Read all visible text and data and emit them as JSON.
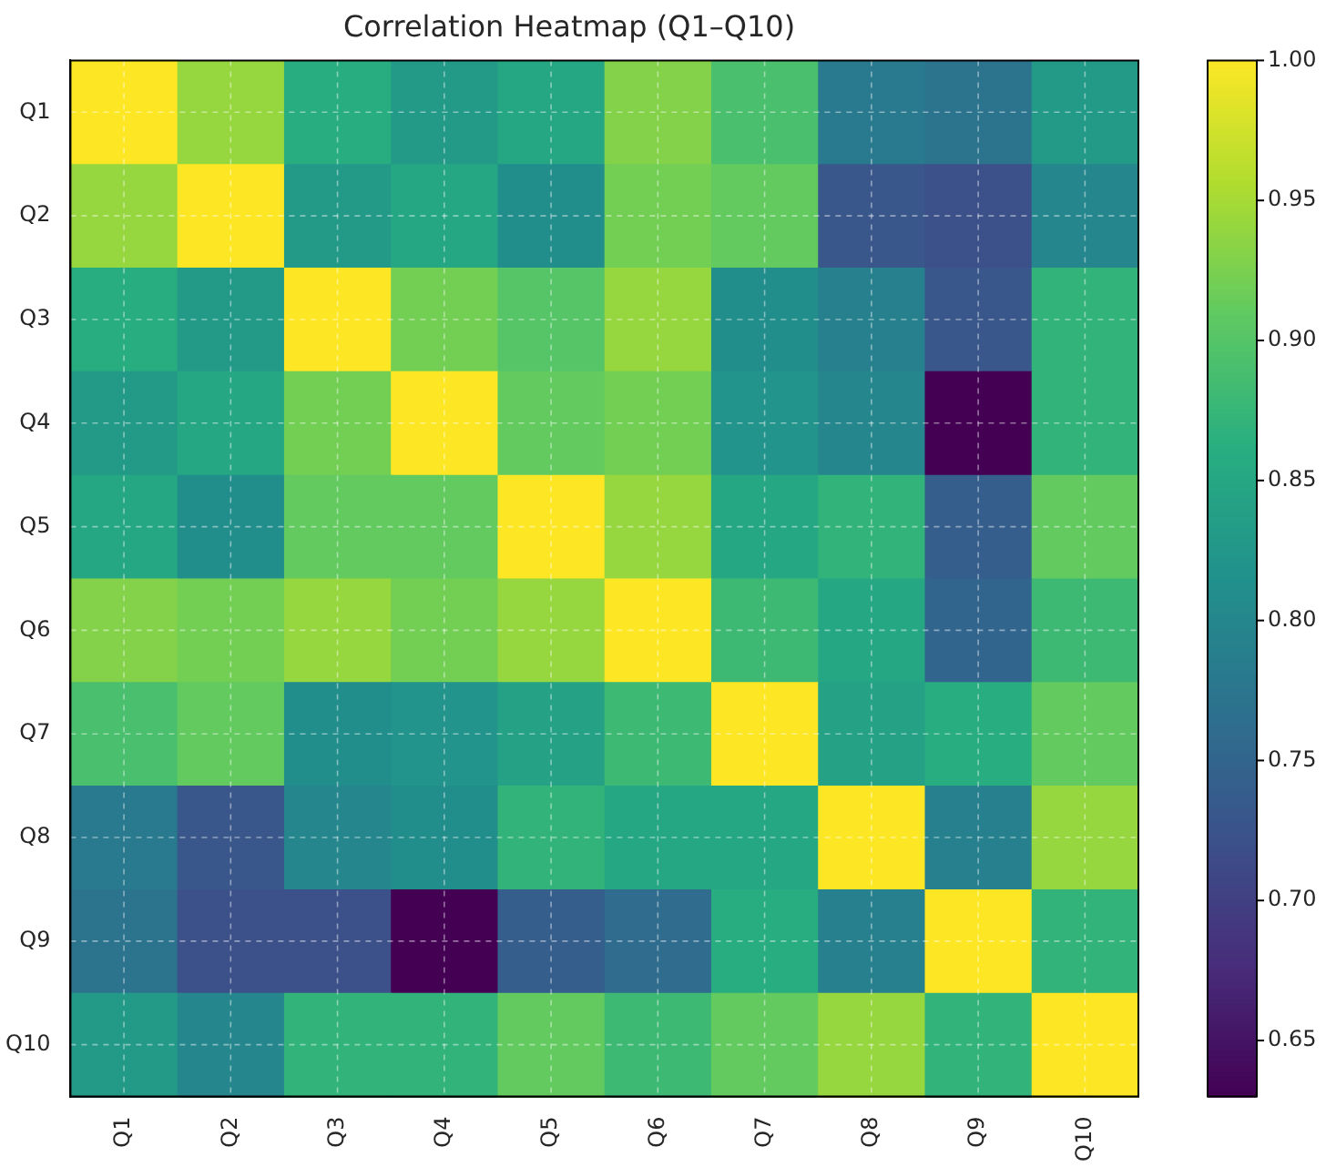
{
  "chart_data": {
    "type": "heatmap",
    "title": "Correlation Heatmap (Q1–Q10)",
    "categories": [
      "Q1",
      "Q2",
      "Q3",
      "Q4",
      "Q5",
      "Q6",
      "Q7",
      "Q8",
      "Q9",
      "Q10"
    ],
    "y_categories": [
      "Q1",
      "Q2",
      "Q3",
      "Q4",
      "Q5",
      "Q6",
      "Q7",
      "Q8",
      "Q9",
      "Q10"
    ],
    "cells": [
      [
        1.0,
        0.94,
        0.86,
        0.83,
        0.85,
        0.93,
        0.89,
        0.78,
        0.77,
        0.83
      ],
      [
        0.94,
        1.0,
        0.83,
        0.85,
        0.81,
        0.92,
        0.91,
        0.73,
        0.72,
        0.8
      ],
      [
        0.86,
        0.83,
        1.0,
        0.92,
        0.9,
        0.94,
        0.81,
        0.79,
        0.73,
        0.87
      ],
      [
        0.83,
        0.85,
        0.92,
        1.0,
        0.91,
        0.92,
        0.82,
        0.8,
        0.63,
        0.87
      ],
      [
        0.85,
        0.81,
        0.91,
        0.91,
        1.0,
        0.94,
        0.85,
        0.87,
        0.74,
        0.91
      ],
      [
        0.93,
        0.92,
        0.94,
        0.92,
        0.94,
        1.0,
        0.88,
        0.85,
        0.75,
        0.88
      ],
      [
        0.89,
        0.91,
        0.81,
        0.82,
        0.84,
        0.88,
        1.0,
        0.84,
        0.86,
        0.91
      ],
      [
        0.78,
        0.73,
        0.8,
        0.81,
        0.87,
        0.85,
        0.85,
        1.0,
        0.79,
        0.94
      ],
      [
        0.77,
        0.72,
        0.72,
        0.63,
        0.74,
        0.76,
        0.86,
        0.79,
        1.0,
        0.87
      ],
      [
        0.83,
        0.8,
        0.87,
        0.87,
        0.91,
        0.88,
        0.91,
        0.94,
        0.87,
        1.0
      ]
    ],
    "clim": [
      0.63,
      1.0
    ],
    "cticks": [
      0.65,
      {
        "value": 0.7,
        "label": "0.70"
      },
      0.75,
      {
        "value": 0.8,
        "label": "0.80"
      },
      0.85,
      {
        "value": 0.9,
        "label": "0.90"
      },
      0.95,
      {
        "value": 1.0,
        "label": "1.00"
      }
    ],
    "grid": true
  }
}
